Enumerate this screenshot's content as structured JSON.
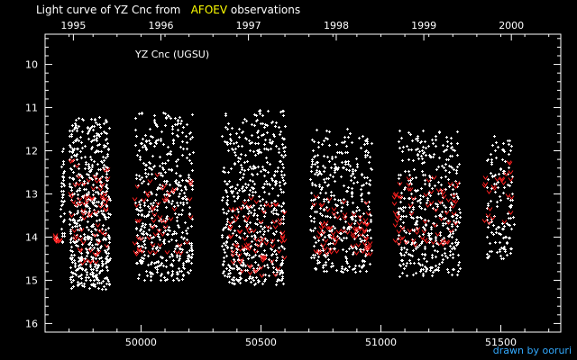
{
  "title": {
    "prefix": "Light curve of YZ Cnc from",
    "source": "AFOEV",
    "suffix": "observations"
  },
  "credit": "drawn by ooruri",
  "colors": {
    "background": "#000000",
    "frame": "#ffffff",
    "visual_obs": "#ffffff",
    "fainter_than": "#ff2020",
    "source_highlight": "#ffff00",
    "credit": "#33aaff"
  },
  "chart_data": {
    "type": "scatter",
    "title": "YZ Cnc (UGSU)",
    "x_axis": {
      "label": "",
      "range": [
        49600,
        51750
      ],
      "ticks": [
        50000,
        50500,
        51000,
        51500
      ],
      "tick_labels": [
        "50000",
        "50500",
        "51000",
        "51500"
      ]
    },
    "x2_axis": {
      "label": "",
      "ticks": [
        49718,
        50083,
        50448,
        50814,
        51179,
        51544
      ],
      "tick_labels": [
        "1995",
        "1996",
        "1997",
        "1998",
        "1999",
        "2000"
      ]
    },
    "y_axis": {
      "label": "",
      "range": [
        16.2,
        9.3
      ],
      "inverted": true,
      "ticks": [
        10,
        11,
        12,
        13,
        14,
        15,
        16
      ],
      "tick_labels": [
        "10",
        "11",
        "12",
        "13",
        "14",
        "15",
        "16"
      ]
    },
    "grid": false,
    "series": [
      {
        "marker": "plus",
        "color": "#ffffff",
        "observing_seasons": [
          {
            "x_range": [
              49640,
              49650
            ],
            "y_range": [
              13.9,
              14.1
            ],
            "count": 6
          },
          {
            "x_range": [
              49665,
              49680
            ],
            "y_range": [
              11.5,
              14.2
            ],
            "count": 40
          },
          {
            "x_range": [
              49700,
              49870
            ],
            "y_range": [
              10.5,
              15.2
            ],
            "count": 600
          },
          {
            "x_range": [
              49975,
              50215
            ],
            "y_range": [
              10.4,
              15.0
            ],
            "count": 480
          },
          {
            "x_range": [
              50335,
              50600
            ],
            "y_range": [
              10.3,
              15.1
            ],
            "count": 560
          },
          {
            "x_range": [
              50705,
              50960
            ],
            "y_range": [
              10.9,
              14.8
            ],
            "count": 400
          },
          {
            "x_range": [
              51070,
              51330
            ],
            "y_range": [
              10.9,
              14.9
            ],
            "count": 420
          },
          {
            "x_range": [
              51440,
              51555
            ],
            "y_range": [
              11.1,
              14.5
            ],
            "count": 130
          }
        ]
      },
      {
        "marker": "v",
        "color": "#ff2020",
        "observing_seasons": [
          {
            "x_range": [
              49640,
              49660
            ],
            "y_range": [
              13.9,
              14.1
            ],
            "count": 10
          },
          {
            "x_range": [
              49700,
              49860
            ],
            "y_range": [
              11.8,
              14.6
            ],
            "count": 70
          },
          {
            "x_range": [
              49970,
              50210
            ],
            "y_range": [
              12.2,
              14.4
            ],
            "count": 55
          },
          {
            "x_range": [
              50370,
              50600
            ],
            "y_range": [
              12.7,
              14.9
            ],
            "count": 80
          },
          {
            "x_range": [
              50700,
              50960
            ],
            "y_range": [
              12.8,
              14.4
            ],
            "count": 75
          },
          {
            "x_range": [
              51050,
              51320
            ],
            "y_range": [
              12.3,
              14.2
            ],
            "count": 70
          },
          {
            "x_range": [
              51430,
              51545
            ],
            "y_range": [
              11.9,
              13.7
            ],
            "count": 25
          }
        ]
      }
    ]
  }
}
